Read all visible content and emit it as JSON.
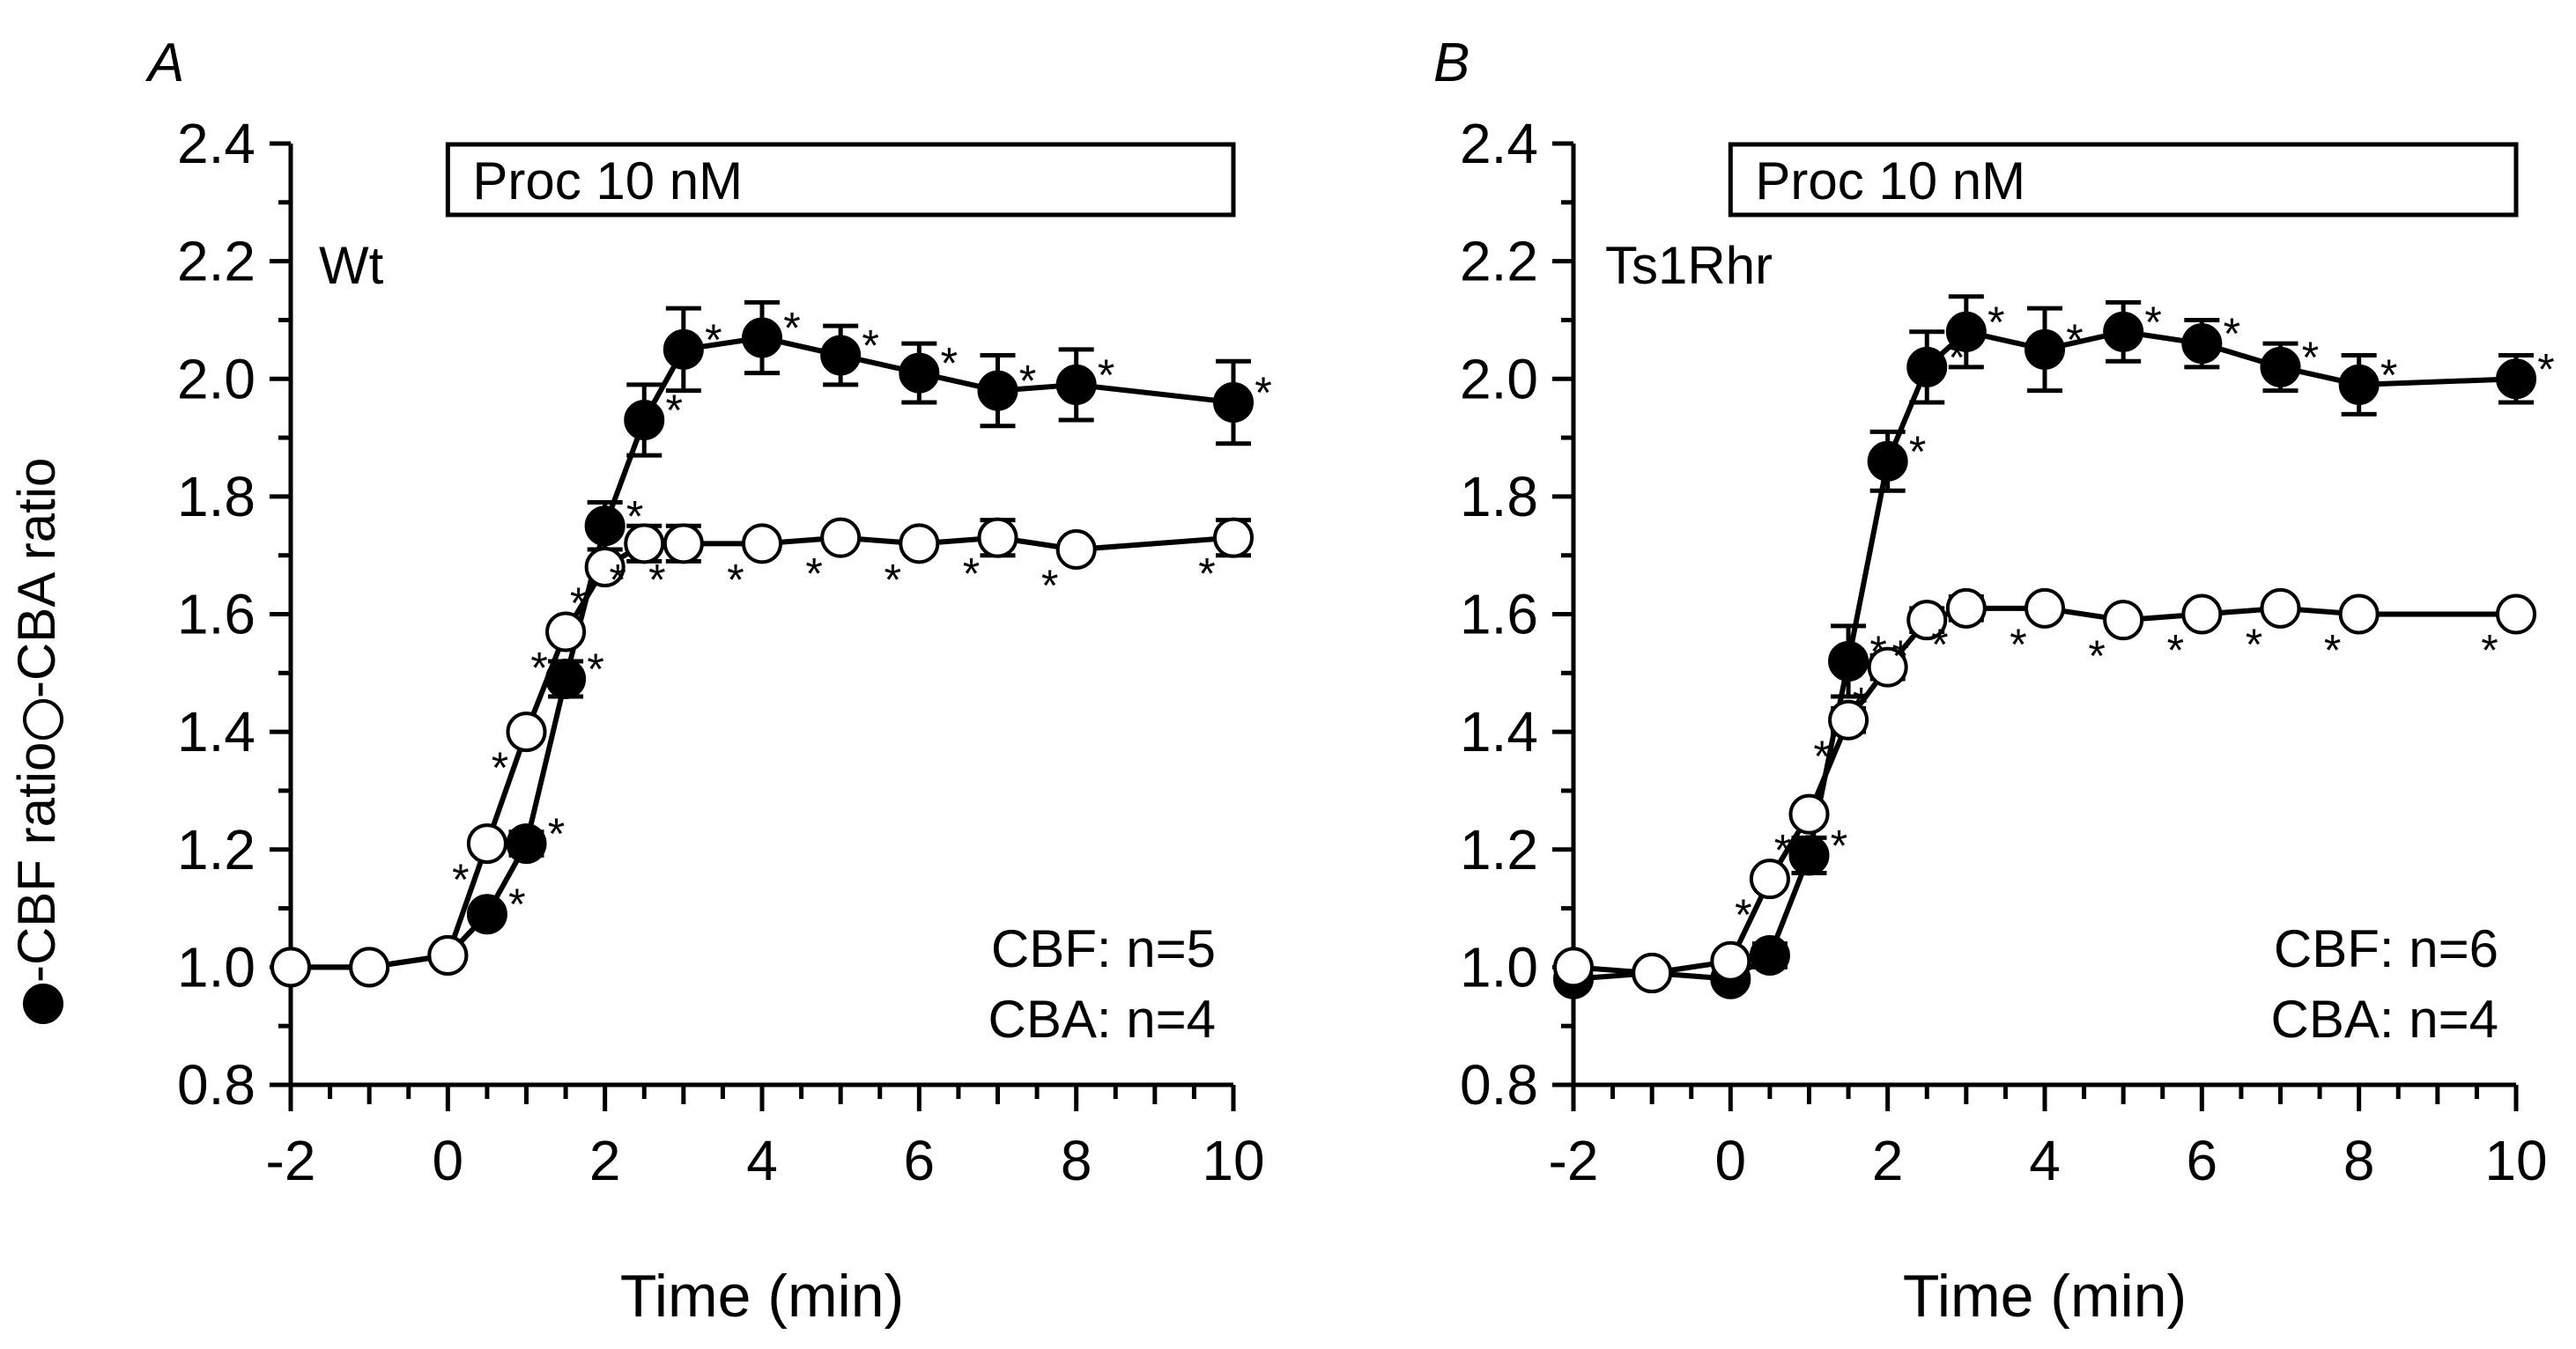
{
  "ylabel": {
    "filled_text": "-CBF ratio",
    "open_text": "-CBA ratio"
  },
  "chart_data": [
    {
      "type": "line",
      "panel_label": "A",
      "inset_label": "Wt",
      "bar_label": "Proc 10 nM",
      "bar_range": [
        0,
        10
      ],
      "xlabel": "Time (min)",
      "xlim": [
        -2,
        10
      ],
      "ylim": [
        0.8,
        2.4
      ],
      "xticks": [
        "-2",
        "0",
        "2",
        "4",
        "6",
        "8",
        "10"
      ],
      "yticks": [
        "0.8",
        "1.0",
        "1.2",
        "1.4",
        "1.6",
        "1.8",
        "2.0",
        "2.2",
        "2.4"
      ],
      "n_lines": [
        "CBF: n=5",
        "CBA: n=4"
      ],
      "series": [
        {
          "name": "CBF",
          "marker": "filled",
          "x": [
            -2,
            -1,
            0,
            0.5,
            1,
            1.5,
            2,
            2.5,
            3,
            4,
            5,
            6,
            7,
            8,
            10
          ],
          "y": [
            1.0,
            1.0,
            1.02,
            1.09,
            1.21,
            1.49,
            1.75,
            1.93,
            2.05,
            2.07,
            2.04,
            2.01,
            1.98,
            1.99,
            1.96
          ],
          "err": [
            0,
            0,
            0,
            0,
            0.02,
            0.03,
            0.04,
            0.06,
            0.07,
            0.06,
            0.05,
            0.05,
            0.06,
            0.06,
            0.07
          ],
          "sig": [
            false,
            false,
            false,
            true,
            true,
            true,
            true,
            true,
            true,
            true,
            true,
            true,
            true,
            true,
            true
          ]
        },
        {
          "name": "CBA",
          "marker": "open",
          "x": [
            -2,
            -1,
            0,
            0.5,
            1,
            1.5,
            2,
            2.5,
            3,
            4,
            5,
            6,
            7,
            8,
            10
          ],
          "y": [
            1.0,
            1.0,
            1.02,
            1.21,
            1.4,
            1.57,
            1.68,
            1.72,
            1.72,
            1.72,
            1.73,
            1.72,
            1.73,
            1.71,
            1.73
          ],
          "err": [
            0,
            0,
            0,
            0,
            0,
            0,
            0,
            0.03,
            0.03,
            0,
            0,
            0,
            0.03,
            0,
            0.03
          ],
          "sig": [
            false,
            false,
            false,
            true,
            true,
            true,
            true,
            true,
            true,
            true,
            true,
            true,
            true,
            true,
            true
          ]
        }
      ]
    },
    {
      "type": "line",
      "panel_label": "B",
      "inset_label": "Ts1Rhr",
      "bar_label": "Proc 10 nM",
      "bar_range": [
        0,
        10
      ],
      "xlabel": "Time (min)",
      "xlim": [
        -2,
        10
      ],
      "ylim": [
        0.8,
        2.4
      ],
      "xticks": [
        "-2",
        "0",
        "2",
        "4",
        "6",
        "8",
        "10"
      ],
      "yticks": [
        "0.8",
        "1.0",
        "1.2",
        "1.4",
        "1.6",
        "1.8",
        "2.0",
        "2.2",
        "2.4"
      ],
      "n_lines": [
        "CBF: n=6",
        "CBA: n=4"
      ],
      "series": [
        {
          "name": "CBF",
          "marker": "filled",
          "x": [
            -2,
            -1,
            0,
            0.5,
            1,
            1.5,
            2,
            2.5,
            3,
            4,
            5,
            6,
            7,
            8,
            10
          ],
          "y": [
            0.98,
            0.99,
            0.98,
            1.02,
            1.19,
            1.52,
            1.86,
            2.02,
            2.08,
            2.05,
            2.08,
            2.06,
            2.02,
            1.99,
            2.0
          ],
          "err": [
            0,
            0,
            0,
            0.02,
            0.03,
            0.06,
            0.05,
            0.06,
            0.06,
            0.07,
            0.05,
            0.04,
            0.04,
            0.05,
            0.04
          ],
          "sig": [
            false,
            false,
            false,
            false,
            true,
            true,
            true,
            true,
            true,
            true,
            true,
            true,
            true,
            true,
            true
          ]
        },
        {
          "name": "CBA",
          "marker": "open",
          "x": [
            -2,
            -1,
            0,
            0.5,
            1,
            1.5,
            2,
            2.5,
            3,
            4,
            5,
            6,
            7,
            8,
            10
          ],
          "y": [
            1.0,
            0.99,
            1.01,
            1.15,
            1.26,
            1.42,
            1.51,
            1.59,
            1.61,
            1.61,
            1.59,
            1.6,
            1.61,
            1.6,
            1.6
          ],
          "err": [
            0,
            0,
            0,
            0,
            0,
            0.02,
            0.02,
            0.02,
            0.02,
            0,
            0,
            0,
            0,
            0,
            0
          ],
          "sig": [
            false,
            false,
            false,
            true,
            true,
            true,
            true,
            true,
            true,
            true,
            true,
            true,
            true,
            true,
            true
          ]
        }
      ]
    }
  ]
}
